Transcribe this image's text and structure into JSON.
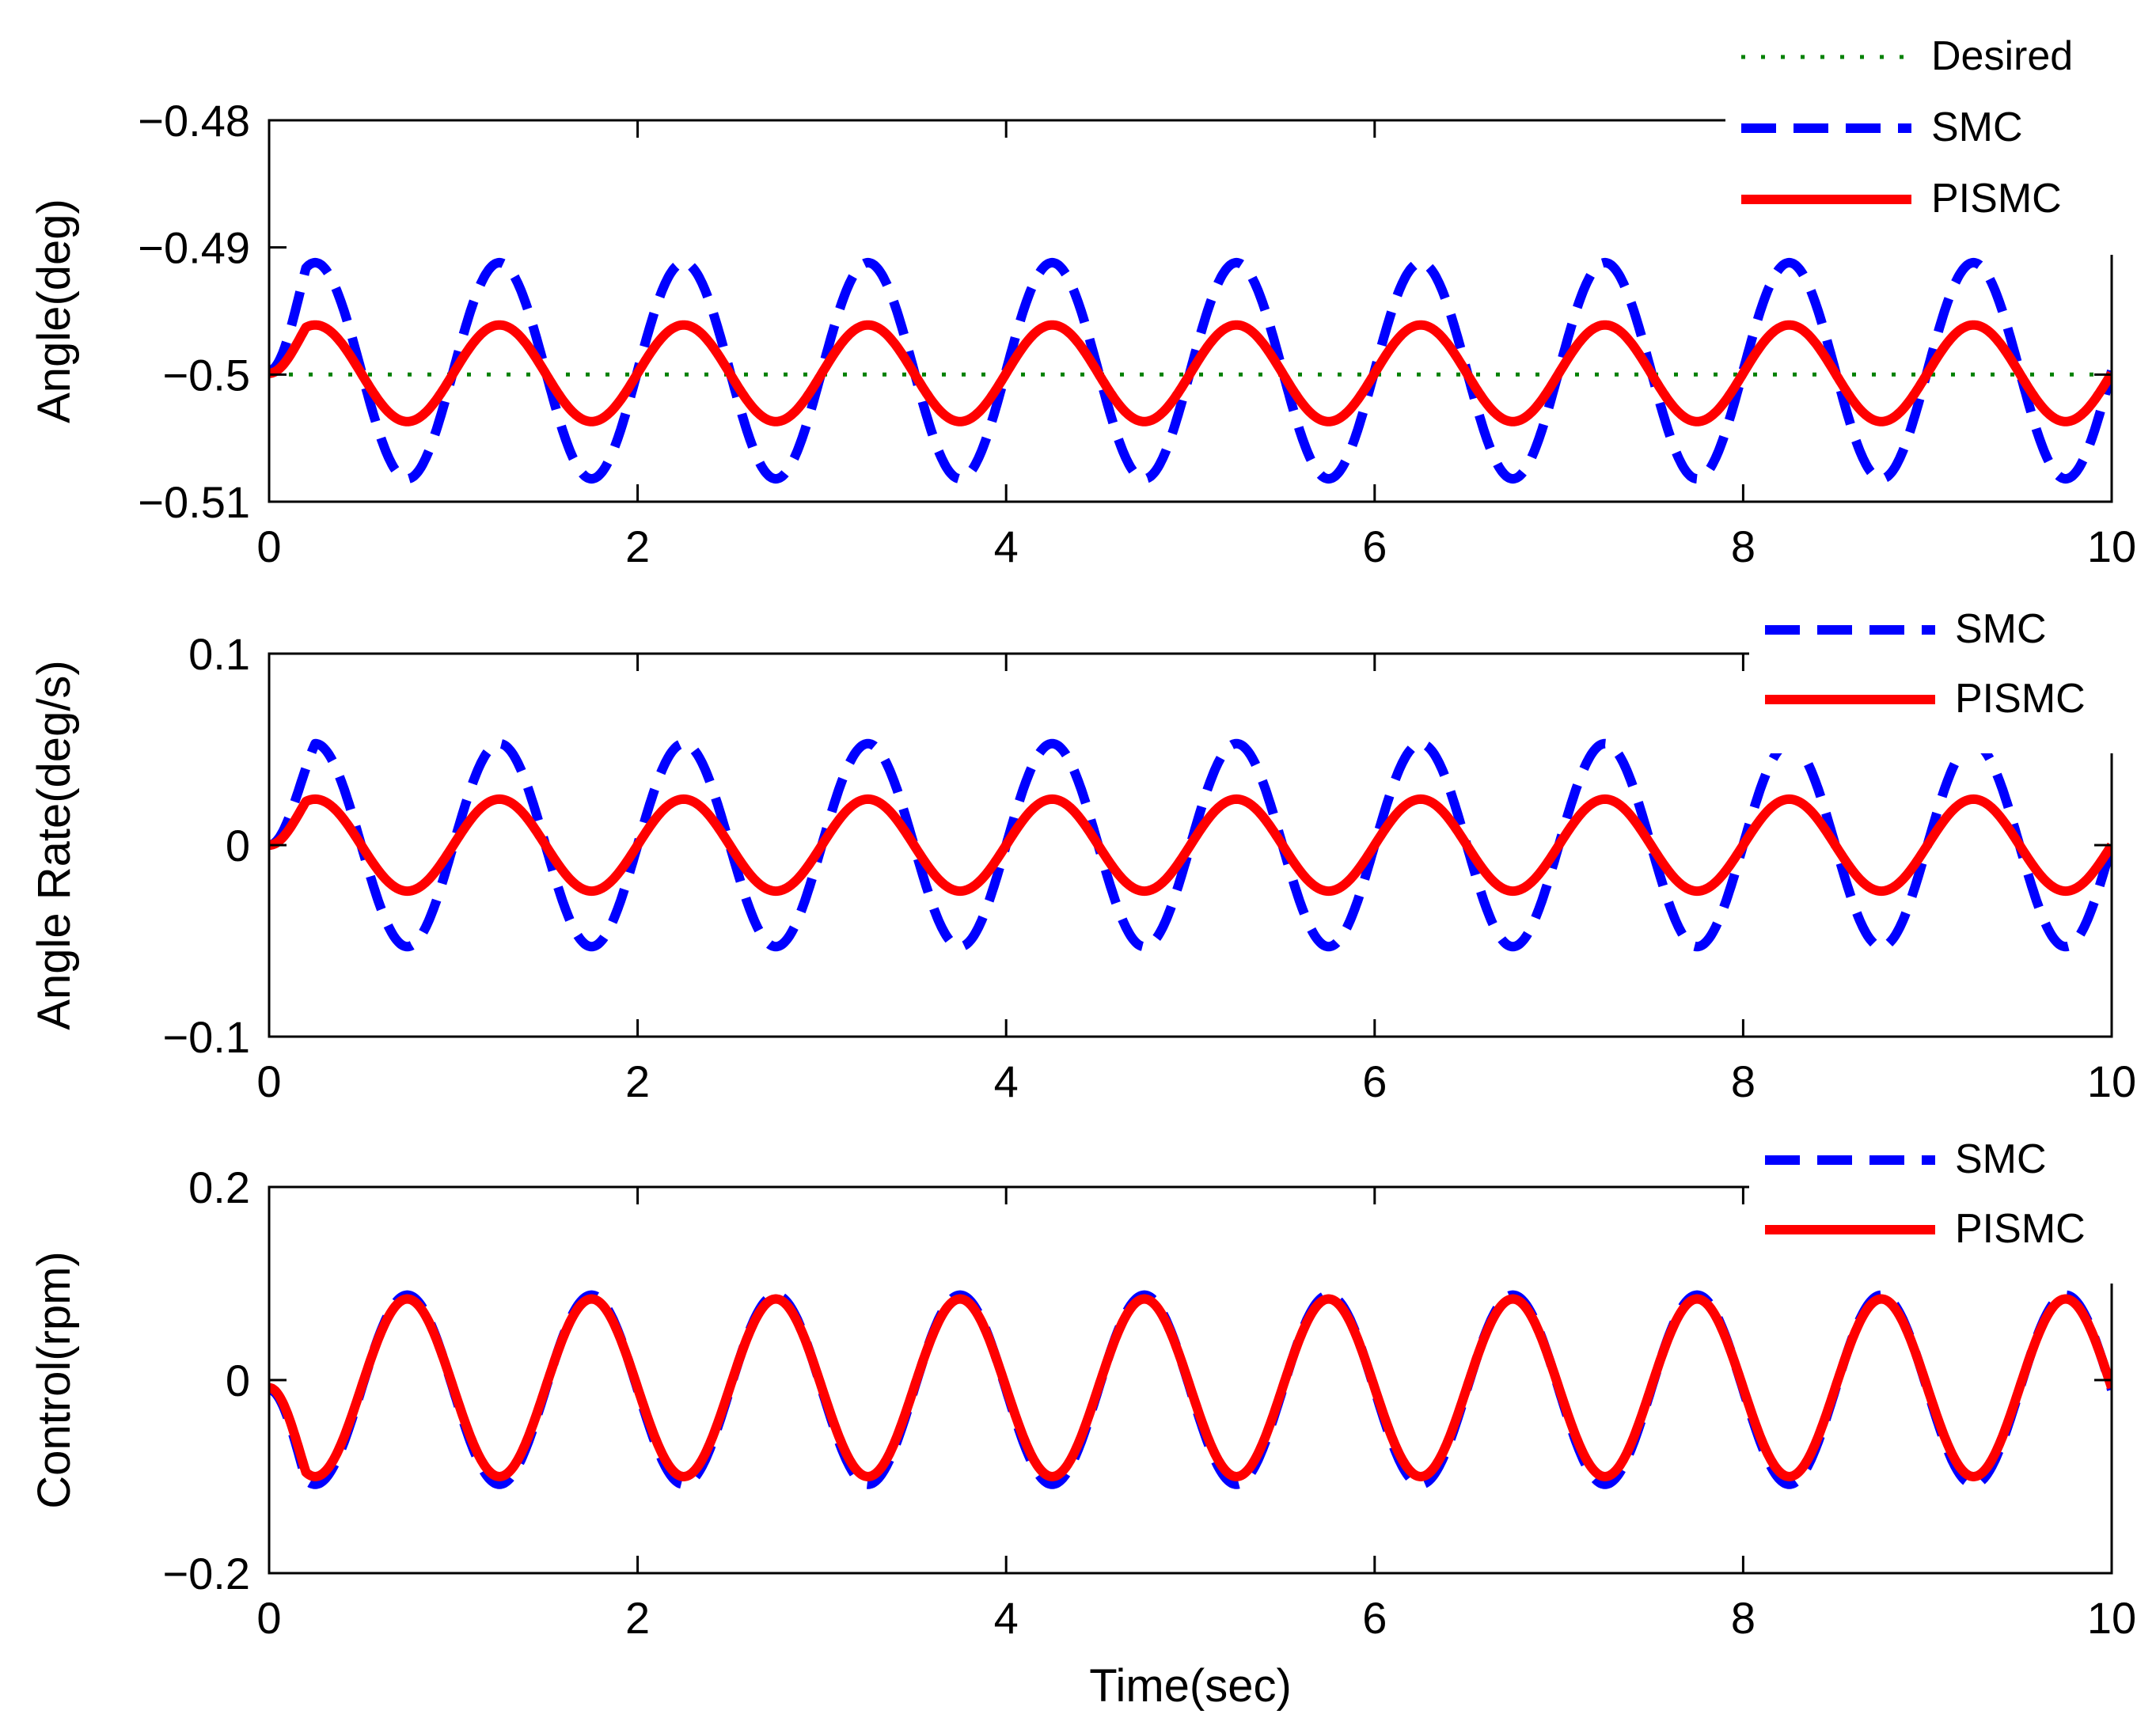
{
  "chart_data": [
    {
      "type": "line",
      "ylabel": "Angle(deg)",
      "xlabel": "",
      "xlim": [
        0,
        10
      ],
      "ylim": [
        -0.51,
        -0.48
      ],
      "xticks": [
        "0",
        "2",
        "4",
        "6",
        "8",
        "10"
      ],
      "yticks": [
        "−0.48",
        "−0.49",
        "−0.5",
        "−0.51"
      ],
      "legend_position": "top-right",
      "grid": false,
      "series": [
        {
          "name": "Desired",
          "style": "dotted",
          "color": "#008000",
          "base": -0.5,
          "amplitude": 0,
          "period": 1.0,
          "delay": 0,
          "shape": "sin"
        },
        {
          "name": "SMC",
          "style": "dashed",
          "color": "#0000ff",
          "base": -0.4997,
          "amplitude": 0.0085,
          "period": 1.0,
          "delay": 0.2,
          "shape": "sin"
        },
        {
          "name": "PISMC",
          "style": "solid",
          "color": "#ff0000",
          "base": -0.4999,
          "amplitude": 0.0038,
          "period": 1.0,
          "delay": 0.2,
          "shape": "sin"
        }
      ]
    },
    {
      "type": "line",
      "ylabel": "Angle Rate(deg/s)",
      "xlabel": "",
      "xlim": [
        0,
        10
      ],
      "ylim": [
        -0.1,
        0.1
      ],
      "xticks": [
        "0",
        "2",
        "4",
        "6",
        "8",
        "10"
      ],
      "yticks": [
        "0.1",
        "0",
        "−0.1"
      ],
      "legend_position": "top-right",
      "grid": false,
      "series": [
        {
          "name": "SMC",
          "style": "dashed",
          "color": "#0000ff",
          "base": 0,
          "amplitude": 0.053,
          "period": 1.0,
          "delay": 0.25,
          "shape": "sin"
        },
        {
          "name": "PISMC",
          "style": "solid",
          "color": "#ff0000",
          "base": 0,
          "amplitude": 0.024,
          "period": 1.0,
          "delay": 0.2,
          "shape": "sin"
        }
      ]
    },
    {
      "type": "line",
      "ylabel": "Control(rpm)",
      "xlabel": "Time(sec)",
      "xlim": [
        0,
        10
      ],
      "ylim": [
        -0.2,
        0.2
      ],
      "xticks": [
        "0",
        "2",
        "4",
        "6",
        "8",
        "10"
      ],
      "yticks": [
        "0.2",
        "0",
        "−0.2"
      ],
      "legend_position": "top-right",
      "grid": false,
      "series": [
        {
          "name": "SMC",
          "style": "dashed",
          "color": "#0000ff",
          "base": -0.01,
          "amplitude": 0.098,
          "period": 1.0,
          "delay": 0.2,
          "shape": "negsin"
        },
        {
          "name": "PISMC",
          "style": "solid",
          "color": "#ff0000",
          "base": -0.008,
          "amplitude": 0.092,
          "period": 1.0,
          "delay": 0.2,
          "shape": "negsin"
        }
      ]
    }
  ]
}
